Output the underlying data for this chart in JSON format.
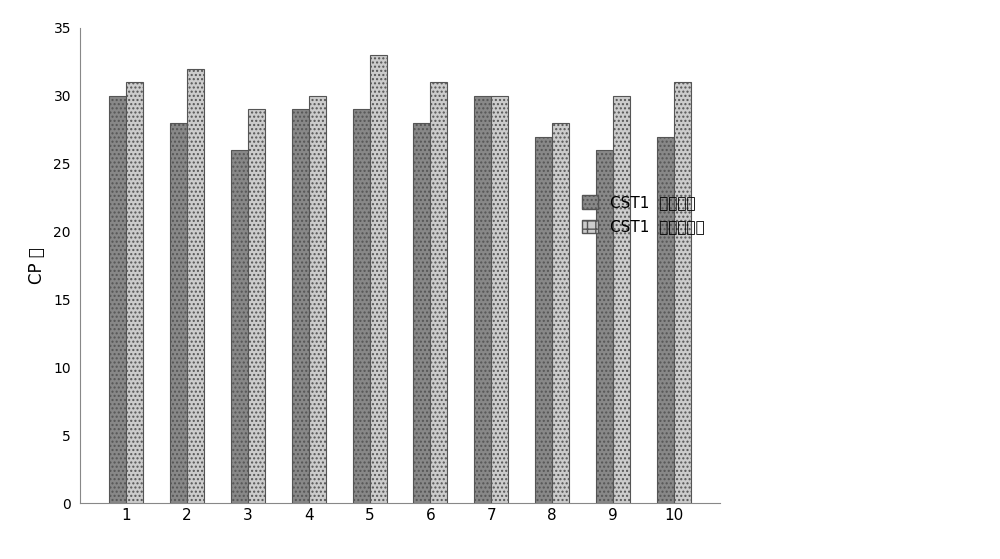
{
  "categories": [
    1,
    2,
    3,
    4,
    5,
    6,
    7,
    8,
    9,
    10
  ],
  "series1_values": [
    30,
    28,
    26,
    29,
    29,
    28,
    30,
    27,
    26,
    27
  ],
  "series2_values": [
    31,
    32,
    29,
    30,
    33,
    31,
    30,
    28,
    30,
    31
  ],
  "series1_label": "CST1  特异探针",
  "series2_label": "▪CST1  非特异探针",
  "ylabel": "CP 値",
  "ylim": [
    0,
    35
  ],
  "yticks": [
    0,
    5,
    10,
    15,
    20,
    25,
    30,
    35
  ],
  "bar_width": 0.28,
  "series1_color": "#888888",
  "series2_color": "#cccccc",
  "series1_hatch": "....",
  "series2_hatch": "....",
  "background_color": "#ffffff",
  "figure_width": 10.0,
  "figure_height": 5.59,
  "legend_label1": "CST1  特异探针",
  "legend_label2": "CST1  非特异探针"
}
